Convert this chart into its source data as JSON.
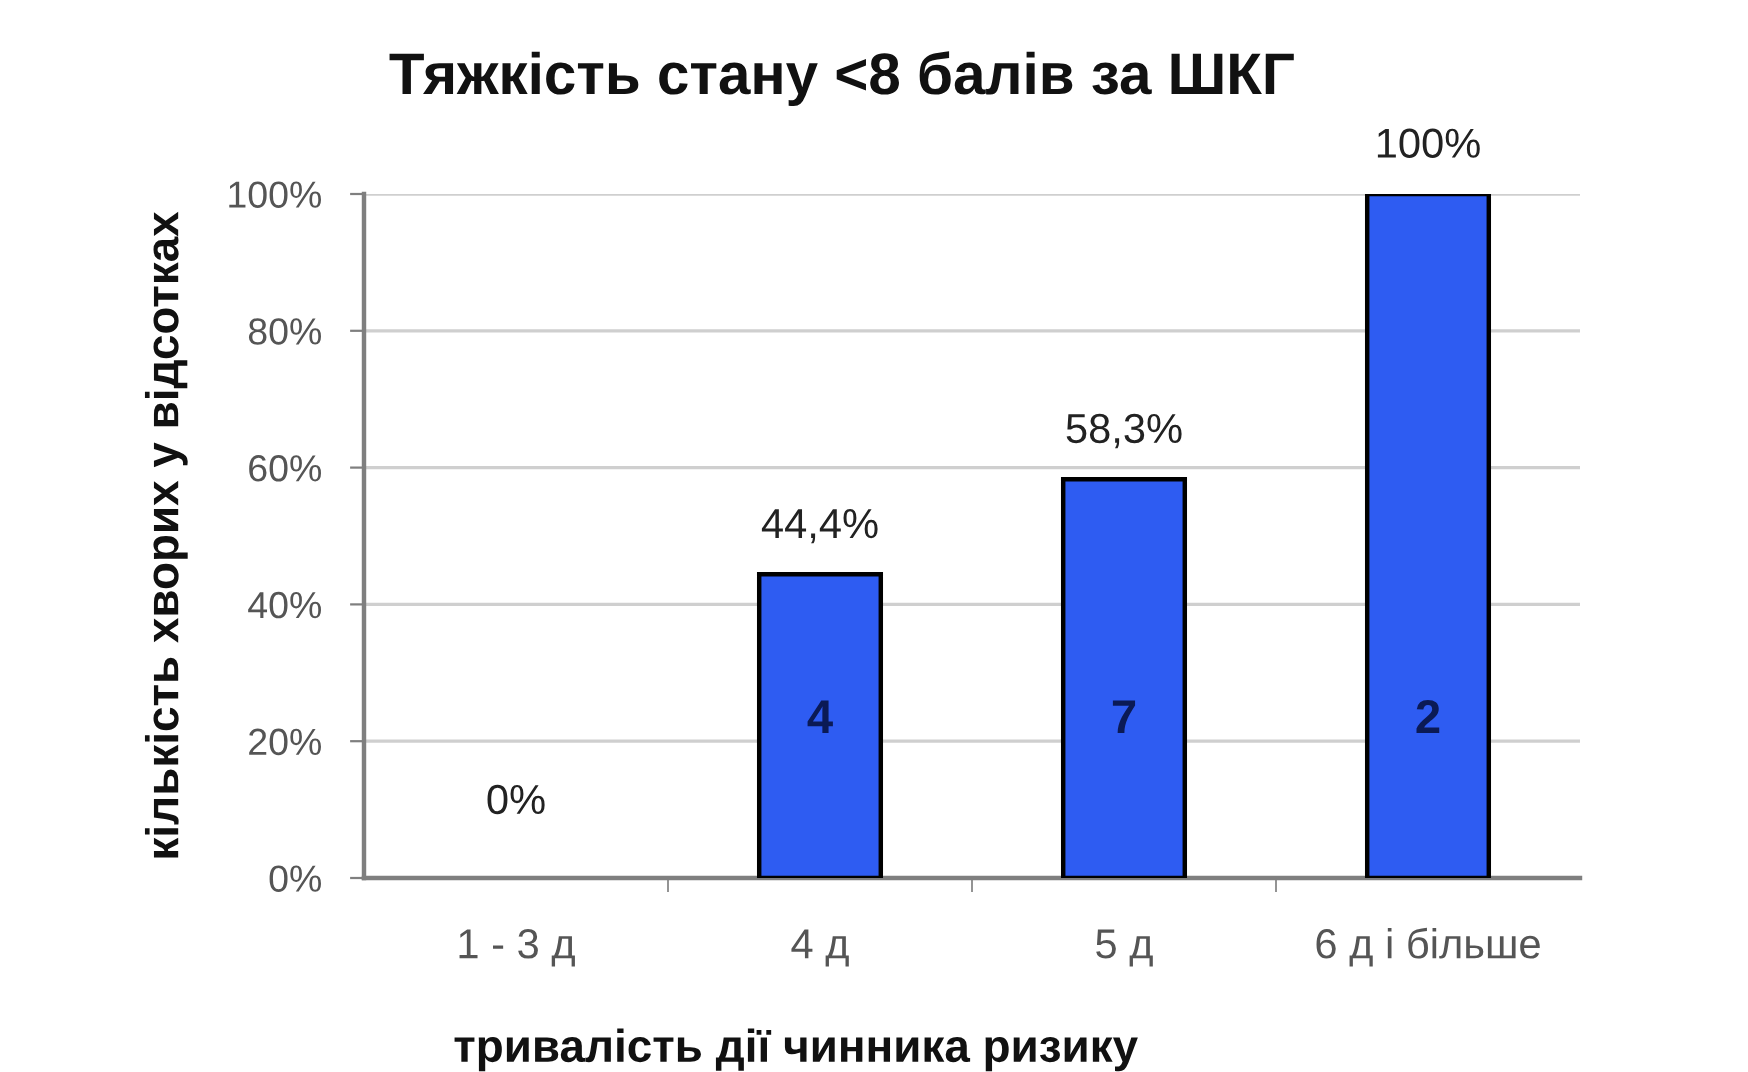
{
  "chart_data": {
    "type": "bar",
    "title": "Тяжкість стану <8 балів за ШКГ",
    "xlabel": "тривалість дії чинника ризику",
    "ylabel": "кількість хворих у відсотках",
    "categories": [
      "1 - 3 д",
      "4 д",
      "5 д",
      "6 д і більше"
    ],
    "values": [
      0,
      44.4,
      58.3,
      100
    ],
    "color": "#2e5cf2",
    "value_labels": [
      "0%",
      "44,4%",
      "58,3%",
      "100%"
    ],
    "ylim": [
      0,
      100
    ],
    "yticks": [
      {
        "value": 0,
        "label": "0%"
      },
      {
        "value": 20,
        "label": "20%"
      },
      {
        "value": 40,
        "label": "40%"
      },
      {
        "value": 60,
        "label": "60%"
      },
      {
        "value": 80,
        "label": "80%"
      },
      {
        "value": 100,
        "label": "100%"
      }
    ],
    "grid": "y",
    "annotations": [
      "4",
      "7",
      "2"
    ]
  }
}
